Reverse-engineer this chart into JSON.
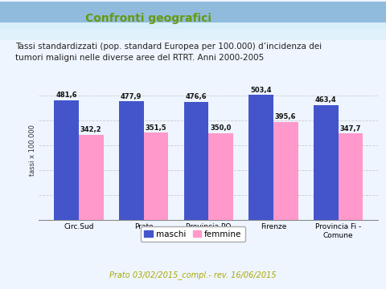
{
  "categories": [
    "Circ.Sud",
    "Prato",
    "Provincia PO",
    "Firenze",
    "Provincia Fi -\nComune"
  ],
  "maschi": [
    481.6,
    477.9,
    476.6,
    503.4,
    463.4
  ],
  "femmine": [
    342.2,
    351.5,
    350.0,
    395.6,
    347.7
  ],
  "maschi_labels": [
    "481,6",
    "477,9",
    "476,6",
    "503,4",
    "463,4"
  ],
  "femmine_labels": [
    "342,2",
    "351,5",
    "350,0",
    "395,6",
    "347,7"
  ],
  "bar_color_maschi": "#4455CC",
  "bar_color_femmine": "#FF99CC",
  "title": "Confronti geografici",
  "subtitle": "Tassi standardizzati (pop. standard Europea per 100.000) d’incidenza dei\ntumori maligni nelle diverse aree del RTRT. Anni 2000-2005",
  "ylabel": "tassi x 100.000",
  "ylim": [
    0,
    560
  ],
  "yticks": [
    0,
    100,
    200,
    300,
    400,
    500
  ],
  "legend_maschi": "maschi",
  "legend_femmine": "femmine",
  "footer": "Prato 03/02/2015_compl.- rev. 16/06/2015",
  "bg_color": "#EEF5FF",
  "header_bg_top": "#A8CCEE",
  "header_bg_bottom": "#D8EAF8",
  "bar_width": 0.38,
  "title_color": "#669911",
  "footer_color": "#AAAA00",
  "grid_color": "#CCCCCC",
  "label_fontsize": 6.0,
  "tick_fontsize": 6.5,
  "ylabel_fontsize": 6.0,
  "subtitle_fontsize": 7.5,
  "title_fontsize": 10.0
}
